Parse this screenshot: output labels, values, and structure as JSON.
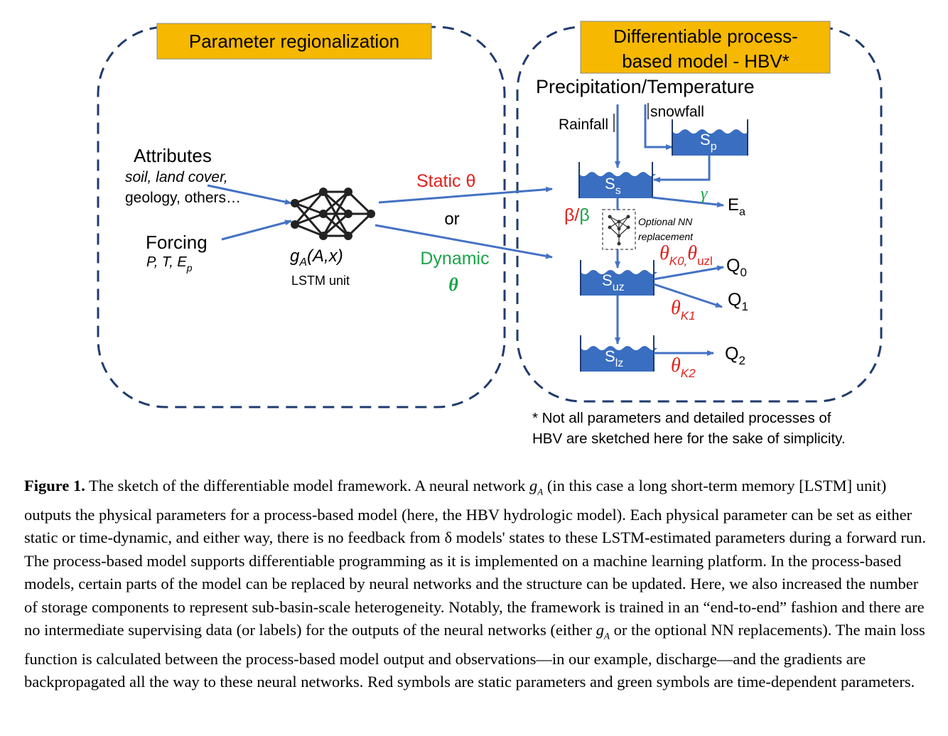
{
  "left_panel": {
    "title": "Parameter regionalization",
    "attributes_label": "Attributes",
    "attributes_detail_1": "soil, land cover,",
    "attributes_detail_2": "geology, others…",
    "forcing_label": "Forcing",
    "forcing_detail": "P, T, E",
    "forcing_detail_sub": "p",
    "network_label": "g",
    "network_label_sub": "A",
    "network_label_args": "(A,x)",
    "network_caption": "LSTM unit"
  },
  "middle": {
    "static_label": "Static θ",
    "or_label": "or",
    "dynamic_label": "Dynamic",
    "dynamic_theta": "θ"
  },
  "right_panel": {
    "title_line_1": "Differentiable process-",
    "title_line_2": "based model - HBV*",
    "inputs_label": "Precipitation/Temperature",
    "rainfall_label": "Rainfall",
    "snowfall_label": "snowfall",
    "sp_label": "S",
    "sp_sub": "p",
    "ss_label": "S",
    "ss_sub": "s",
    "suz_label": "S",
    "suz_sub": "uz",
    "slz_label": "S",
    "slz_sub": "lz",
    "gamma_label": "γ",
    "ea_label": "E",
    "ea_sub": "a",
    "beta_static": "β/",
    "beta_dynamic": "β",
    "nn_note_1": "Optional NN",
    "nn_note_2": "replacement",
    "theta_k0": "θ",
    "theta_k0_sub": "K0,",
    "theta_uzl": "θ",
    "theta_uzl_sub": "uzl",
    "theta_k1": "θ",
    "theta_k1_sub": "K1",
    "theta_k2": "θ",
    "theta_k2_sub": "K2",
    "q0_label": "Q",
    "q0_sub": "0",
    "q1_label": "Q",
    "q1_sub": "1",
    "q2_label": "Q",
    "q2_sub": "2",
    "footnote_1": "* Not all parameters and detailed processes of",
    "footnote_2": "HBV are sketched here for the sake of simplicity."
  },
  "caption": {
    "label": "Figure 1.",
    "part1": " The sketch of the differentiable model framework. A neural network ",
    "ga": "g",
    "ga_sub": "A",
    "part2": " (in this case a long short-term memory [LSTM] unit) outputs the physical parameters for a process-based model (here, the HBV hydrologic model). Each physical parameter can be set as either static or time-dynamic, and either way, there is no feedback from δ models' states to these LSTM-estimated parameters during a forward run. The process-based model supports differentiable programming as it is implemented on a machine learning platform. In the process-based models, certain parts of the model can be replaced by neural networks and the structure can be updated. Here, we also increased the number of storage components to represent sub-basin-scale heterogeneity. Notably, the framework is trained in an “end-to-end” fashion and there are no intermediate supervising data (or labels) for the outputs of the neural networks (either ",
    "ga2": "g",
    "ga2_sub": "A",
    "part3": " or the optional NN replacements). The main loss function is calculated between the process-based model output and observations—in our example, discharge—and the gradients are backpropagated all the way to these neural networks. Red symbols are static parameters and green symbols are time-dependent parameters."
  },
  "colors": {
    "title_box": "#f6b800",
    "dashed_border": "#1f3b6e",
    "arrow": "#4472c4",
    "bucket": "#3a6ec0",
    "static_red": "#e0211b",
    "dynamic_green": "#1aa34a"
  }
}
